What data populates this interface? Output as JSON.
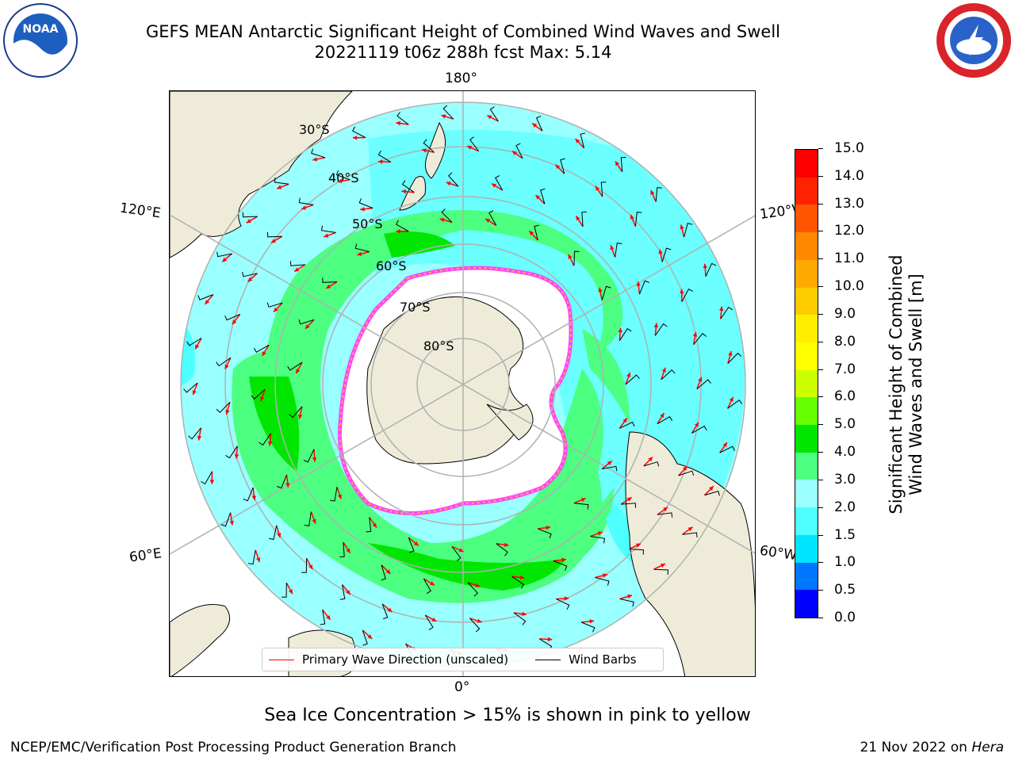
{
  "title": {
    "line1": "GEFS MEAN Antarctic Significant Height of Combined Wind Waves and Swell",
    "line2": "20221119 t06z 288h fcst   Max: 5.14"
  },
  "logos": {
    "left": "NOAA",
    "right": "NATIONAL WEATHER SERVICE"
  },
  "map": {
    "projection": "south-polar-stereographic",
    "lon_labels": [
      "180°",
      "120°E",
      "120°W",
      "60°E",
      "60°W",
      "0°"
    ],
    "lat_labels": [
      "30°S",
      "40°S",
      "50°S",
      "60°S",
      "70°S",
      "80°S"
    ],
    "land_color": "#eeecd9",
    "ice_colors": [
      "#ff44ff",
      "#ffb040"
    ]
  },
  "legend": {
    "items": [
      {
        "label": "Primary Wave Direction (unscaled)",
        "color": "#ff0000"
      },
      {
        "label": "Wind Barbs",
        "color": "#000000"
      }
    ]
  },
  "colorbar": {
    "label": "Significant Height of Combined Wind Waves and Swell [m]",
    "label_line1": "Significant Height of Combined",
    "label_line2": "Wind Waves and Swell [m]",
    "ticks": [
      "0.0",
      "0.5",
      "1.0",
      "1.5",
      "2.0",
      "3.0",
      "4.0",
      "5.0",
      "6.0",
      "7.0",
      "8.0",
      "9.0",
      "10.0",
      "11.0",
      "12.0",
      "13.0",
      "14.0",
      "15.0"
    ],
    "colors": [
      "#0000ff",
      "#0077ff",
      "#00e5ff",
      "#4dffff",
      "#99ffff",
      "#4dff80",
      "#00e600",
      "#66ff00",
      "#ccff00",
      "#ffff00",
      "#ffee00",
      "#ffcc00",
      "#ffaa00",
      "#ff8800",
      "#ff5500",
      "#ff2200",
      "#ff0000"
    ]
  },
  "note": "Sea Ice Concentration > 15% is shown in pink to yellow",
  "footer": {
    "left": "NCEP/EMC/Verification Post Processing Product Generation Branch",
    "date": "21 Nov 2022 on ",
    "host": "Hera"
  }
}
